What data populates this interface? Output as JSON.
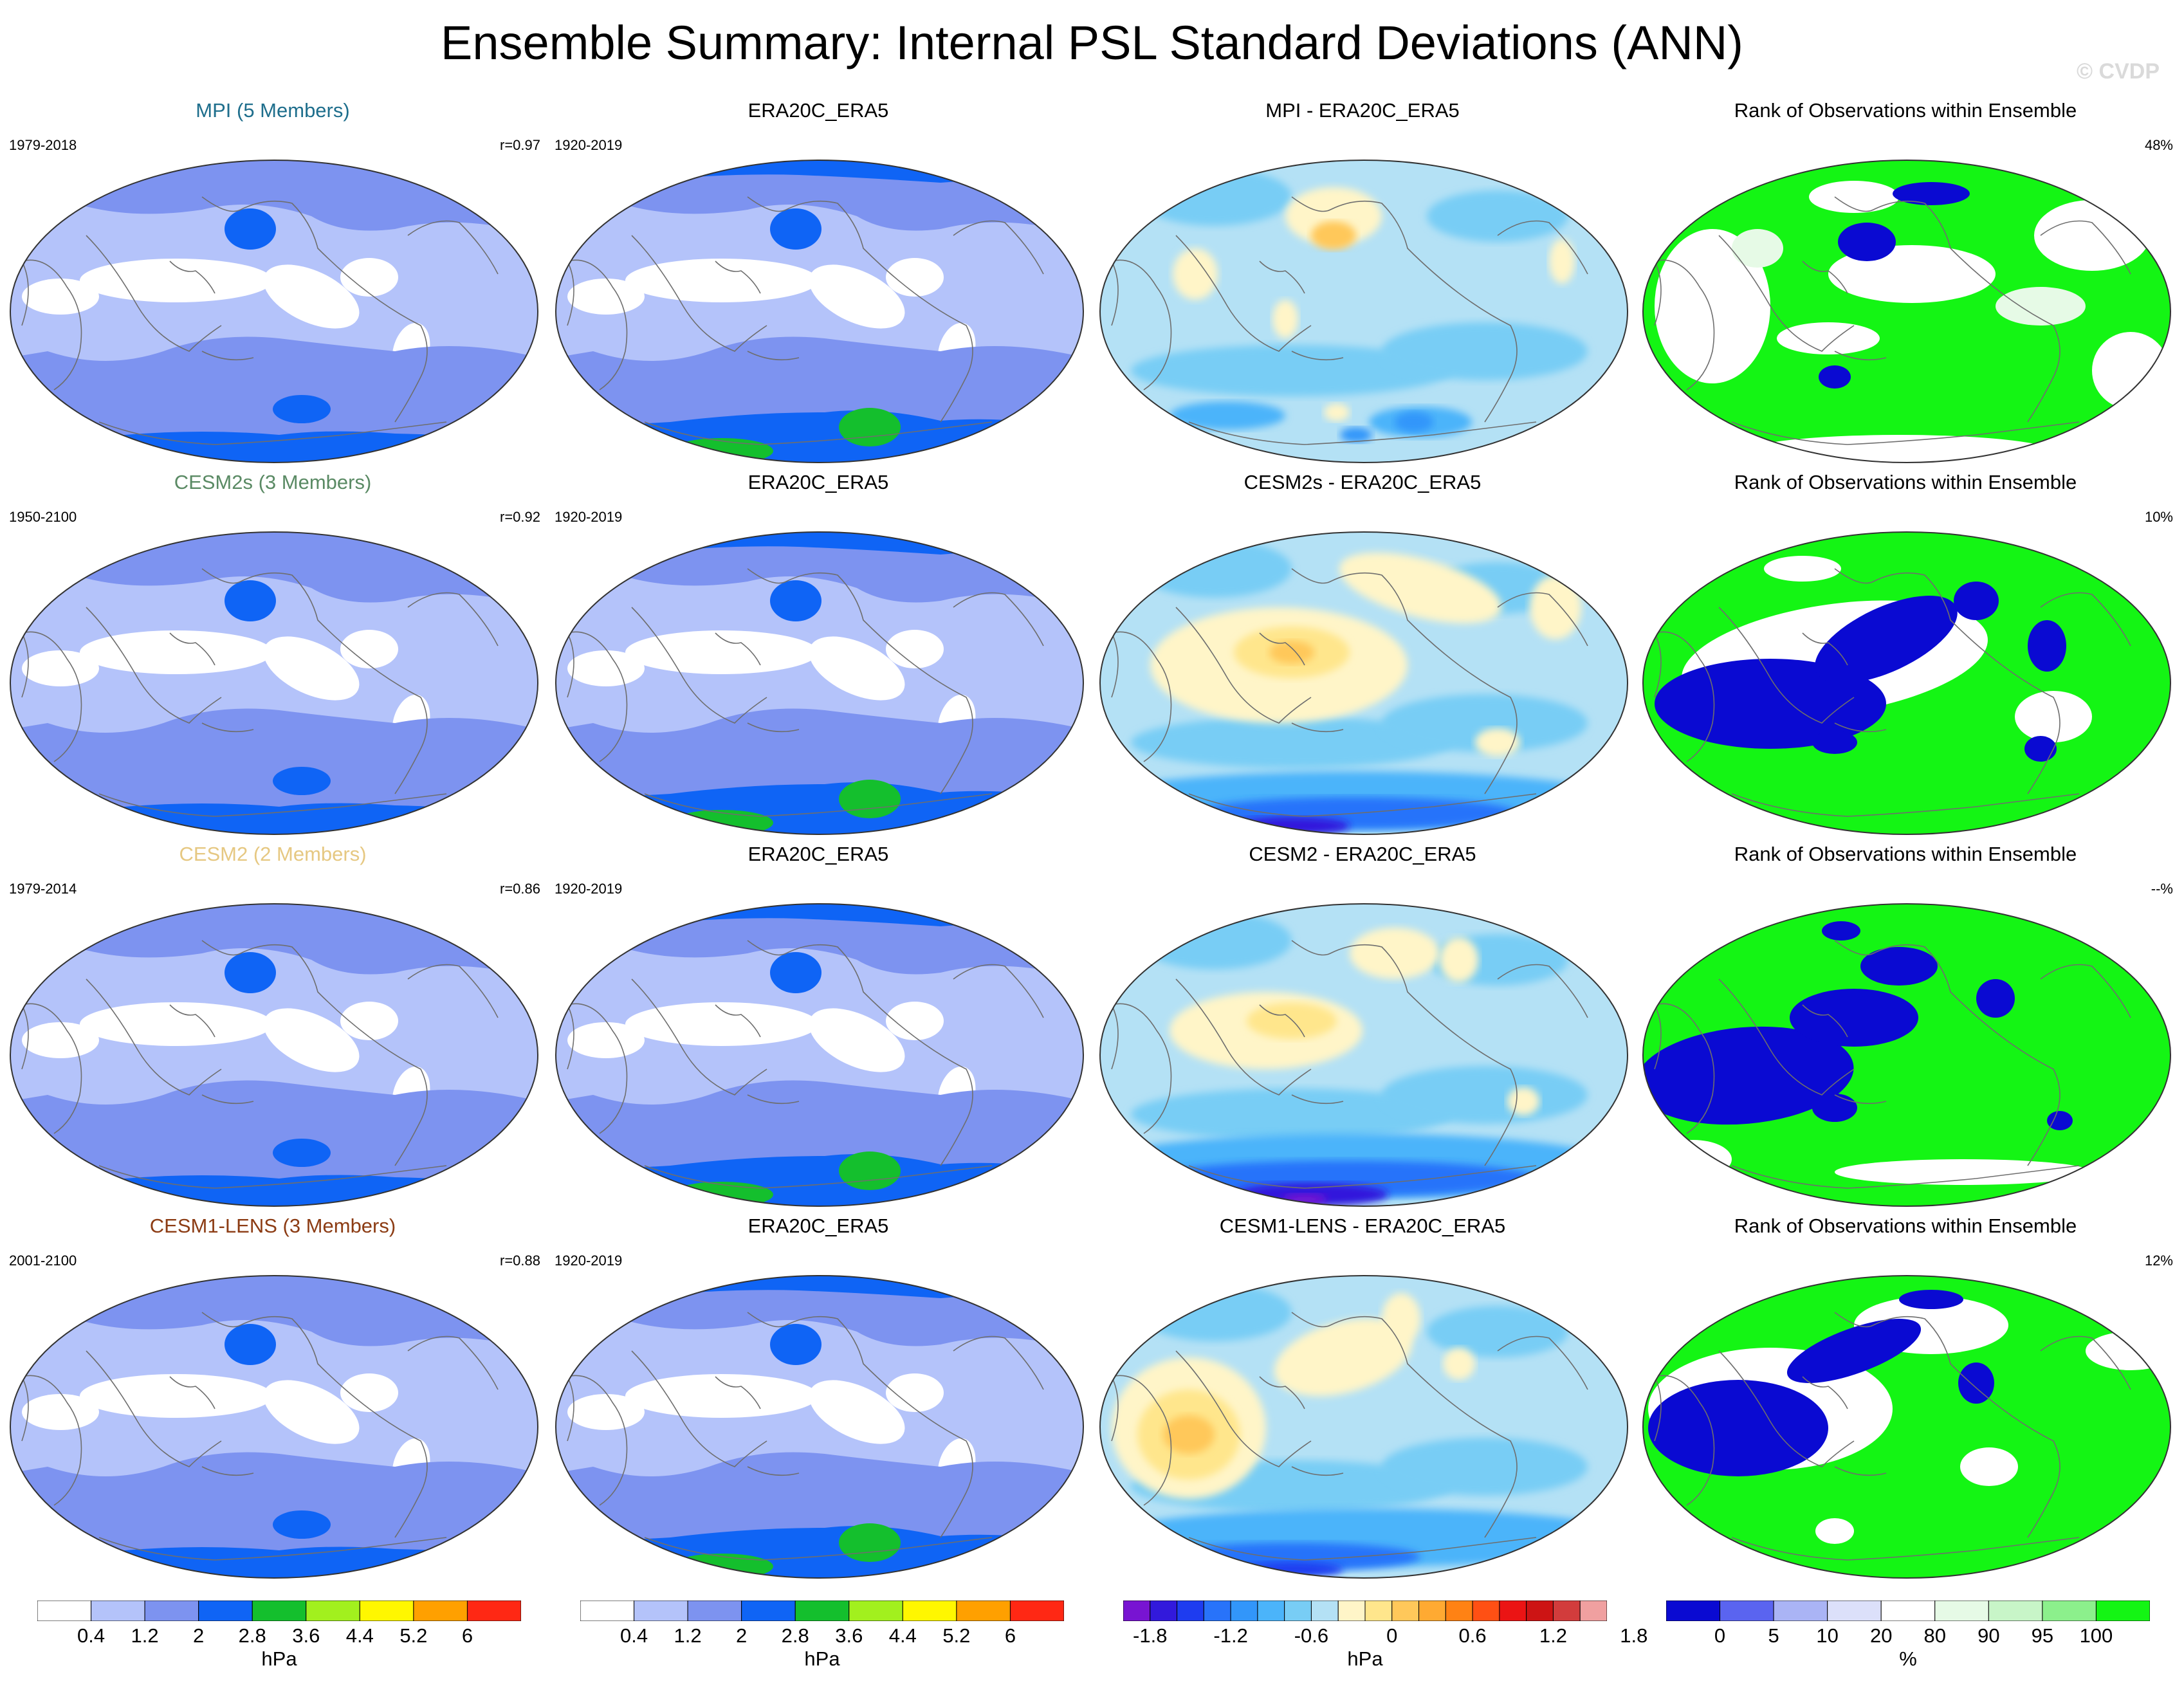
{
  "title": "Ensemble Summary: Internal PSL Standard Deviations (ANN)",
  "watermark": "© CVDP",
  "colors": {
    "std": [
      "#ffffff",
      "#b4c3fa",
      "#7d93f0",
      "#0f64f5",
      "#14bf2d",
      "#a2f01e",
      "#fff700",
      "#ffa000",
      "#ff2814"
    ],
    "diff": [
      "#7814d2",
      "#3219dc",
      "#1e3cf0",
      "#2873fa",
      "#3296fa",
      "#4bb4fa",
      "#78cdf5",
      "#b4e1f5",
      "#fff5c8",
      "#ffe68c",
      "#ffc85a",
      "#ffaa32",
      "#ff8214",
      "#ff5014",
      "#eb1414",
      "#cd1414",
      "#d23c3c",
      "#f0a0a0"
    ],
    "rank": [
      "#0a0ad2",
      "#5a64f0",
      "#aab4f5",
      "#dce0fa",
      "#ffffff",
      "#e6fae6",
      "#c8f5c8",
      "#8cf08c",
      "#14f514"
    ]
  },
  "rows": [
    {
      "model": {
        "title": "MPI (5 Members)",
        "color": "#1e6e8c",
        "years": "1979-2018",
        "r": "r=0.97"
      },
      "obs": {
        "title": "ERA20C_ERA5",
        "years": "1920-2019"
      },
      "diff": {
        "title": "MPI - ERA20C_ERA5"
      },
      "rank": {
        "title": "Rank of Observations within Ensemble",
        "pct": "48%"
      }
    },
    {
      "model": {
        "title": "CESM2s (3 Members)",
        "color": "#5a8a64",
        "years": "1950-2100",
        "r": "r=0.92"
      },
      "obs": {
        "title": "ERA20C_ERA5",
        "years": "1920-2019"
      },
      "diff": {
        "title": "CESM2s - ERA20C_ERA5"
      },
      "rank": {
        "title": "Rank of Observations within Ensemble",
        "pct": "10%"
      }
    },
    {
      "model": {
        "title": "CESM2 (2 Members)",
        "color": "#e6c882",
        "years": "1979-2014",
        "r": "r=0.86"
      },
      "obs": {
        "title": "ERA20C_ERA5",
        "years": "1920-2019"
      },
      "diff": {
        "title": "CESM2 - ERA20C_ERA5"
      },
      "rank": {
        "title": "Rank of Observations within Ensemble",
        "pct": "--%"
      }
    },
    {
      "model": {
        "title": "CESM1-LENS (3 Members)",
        "color": "#8c3c14",
        "years": "2001-2100",
        "r": "r=0.88"
      },
      "obs": {
        "title": "ERA20C_ERA5",
        "years": "1920-2019"
      },
      "diff": {
        "title": "CESM1-LENS - ERA20C_ERA5"
      },
      "rank": {
        "title": "Rank of Observations within Ensemble",
        "pct": "12%"
      }
    }
  ],
  "colorbars": {
    "std": {
      "labels": [
        "0.4",
        "1.2",
        "2",
        "2.8",
        "3.6",
        "4.4",
        "5.2",
        "6"
      ],
      "unit": "hPa"
    },
    "diff": {
      "labels": [
        "-1.8",
        "-1.2",
        "-0.6",
        "0",
        "0.6",
        "1.2",
        "1.8"
      ],
      "unit": "hPa"
    },
    "rank": {
      "labels": [
        "0",
        "5",
        "10",
        "20",
        "80",
        "90",
        "95",
        "100"
      ],
      "unit": "%"
    }
  },
  "chart_data": {
    "type": "heatmap",
    "title": "Ensemble Summary: Internal PSL Standard Deviations (ANN)",
    "panel_grid": {
      "rows": 4,
      "columns": [
        "model std",
        "observed std",
        "model - observed",
        "rank of observations"
      ]
    },
    "variable": "PSL internal standard deviation",
    "season": "ANN",
    "std_levels_hPa": [
      0.4,
      0.8,
      1.2,
      1.6,
      2.0,
      2.4,
      2.8,
      3.2,
      3.6,
      4.0,
      4.4,
      4.8,
      5.2,
      5.6,
      6.0
    ],
    "std_label_ticks": [
      0.4,
      1.2,
      2,
      2.8,
      3.6,
      4.4,
      5.2,
      6
    ],
    "diff_label_ticks": [
      -1.8,
      -1.2,
      -0.6,
      0,
      0.6,
      1.2,
      1.8
    ],
    "rank_label_ticks": [
      0,
      5,
      10,
      20,
      80,
      90,
      95,
      100
    ],
    "pattern_correlation": {
      "MPI": 0.97,
      "CESM2s": 0.92,
      "CESM2": 0.86,
      "CESM1-LENS": 0.88
    },
    "obs_within_ensemble_pct": {
      "MPI": "48%",
      "CESM2s": "10%",
      "CESM2": "--%",
      "CESM1-LENS": "12%"
    },
    "model_periods": {
      "MPI": "1979-2018",
      "CESM2s": "1950-2100",
      "CESM2": "1979-2014",
      "CESM1-LENS": "2001-2100"
    },
    "observation_period": "1920-2019"
  }
}
